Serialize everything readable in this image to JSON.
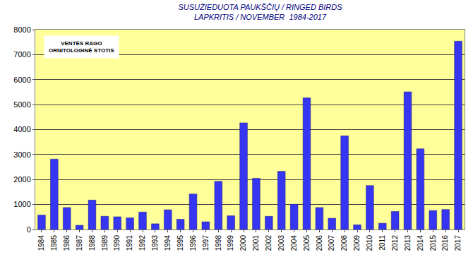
{
  "chart_data": {
    "type": "bar",
    "title": "SUSUŽIEDUOTA PAUKŠČIŲ / RINGED BIRDS\nLAPKRITIS / NOVEMBER  1984-2017",
    "annotations": [
      "VENTĖS RAGO",
      "ORNITOLOGINĖ STOTIS"
    ],
    "categories": [
      "1984",
      "1985",
      "1986",
      "1987",
      "1988",
      "1989",
      "1990",
      "1991",
      "1992",
      "1993",
      "1994",
      "1995",
      "1996",
      "1997",
      "1998",
      "1999",
      "2000",
      "2001",
      "2002",
      "2003",
      "2004",
      "2005",
      "2006",
      "2007",
      "2008",
      "2009",
      "2010",
      "2011",
      "2012",
      "2013",
      "2014",
      "2015",
      "2016",
      "2017"
    ],
    "values": [
      580,
      2820,
      880,
      170,
      1180,
      530,
      510,
      470,
      700,
      230,
      790,
      410,
      1420,
      310,
      1930,
      550,
      4270,
      2050,
      530,
      2330,
      1010,
      5270,
      880,
      450,
      3750,
      190,
      1760,
      250,
      720,
      5510,
      3230,
      760,
      800,
      7540
    ],
    "color": "#3636f2",
    "ylim": [
      0,
      8000
    ],
    "yticks": [
      0,
      1000,
      2000,
      3000,
      4000,
      5000,
      6000,
      7000,
      8000
    ],
    "grid": true
  }
}
